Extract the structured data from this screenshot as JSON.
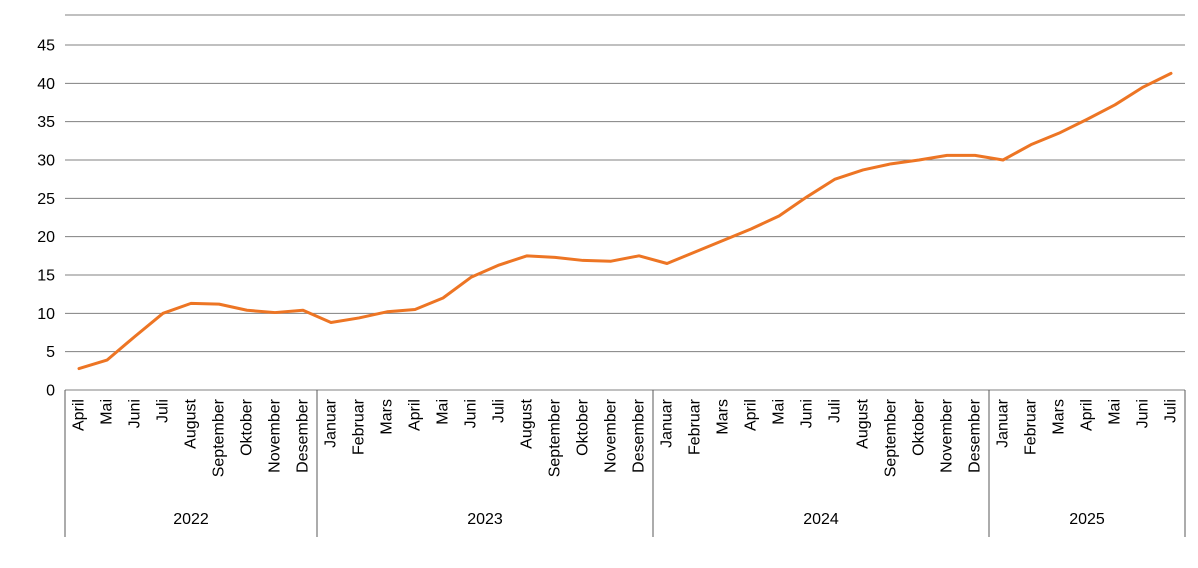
{
  "chart_data": {
    "type": "line",
    "ylim": [
      0,
      45
    ],
    "yticks": [
      0,
      5,
      10,
      15,
      20,
      25,
      30,
      35,
      40,
      45
    ],
    "line_color": "#ED7524",
    "grid_color": "#808080",
    "axis_color": "#595959",
    "text_color": "#000000",
    "years": [
      {
        "label": "2022",
        "months": [
          "April",
          "Mai",
          "Juni",
          "Juli",
          "August",
          "September",
          "Oktober",
          "November",
          "Desember"
        ],
        "values": [
          2.8,
          3.9,
          7.0,
          10.0,
          11.3,
          11.2,
          10.4,
          10.1,
          10.4
        ]
      },
      {
        "label": "2023",
        "months": [
          "Januar",
          "Februar",
          "Mars",
          "April",
          "Mai",
          "Juni",
          "Juli",
          "August",
          "September",
          "Oktober",
          "November",
          "Desember"
        ],
        "values": [
          8.8,
          9.4,
          10.2,
          10.5,
          12.0,
          14.7,
          16.3,
          17.5,
          17.3,
          16.9,
          16.8,
          17.5
        ]
      },
      {
        "label": "2024",
        "months": [
          "Januar",
          "Februar",
          "Mars",
          "April",
          "Mai",
          "Juni",
          "Juli",
          "August",
          "September",
          "Oktober",
          "November",
          "Desember"
        ],
        "values": [
          16.5,
          18.0,
          19.5,
          21.0,
          22.7,
          25.2,
          27.5,
          28.7,
          29.5,
          30.0,
          30.6,
          30.6
        ]
      },
      {
        "label": "2025",
        "months": [
          "Januar",
          "Februar",
          "Mars",
          "April",
          "Mai",
          "Juni",
          "Juli"
        ],
        "values": [
          30.0,
          32.0,
          33.5,
          35.3,
          37.2,
          39.5,
          41.3
        ]
      }
    ]
  }
}
